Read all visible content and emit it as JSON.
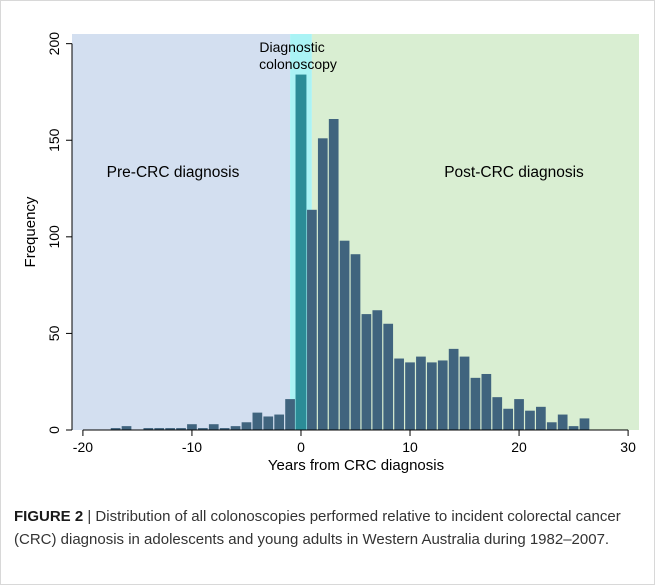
{
  "chart_data": {
    "type": "bar",
    "xlabel": "Years from CRC diagnosis",
    "ylabel": "Frequency",
    "xlim": [
      -21,
      31
    ],
    "ylim": [
      0,
      205
    ],
    "x_ticks": [
      -20,
      -10,
      0,
      10,
      20,
      30
    ],
    "x_tick_labels": [
      "-20",
      "-10",
      "0",
      "10",
      "20",
      "30"
    ],
    "y_ticks": [
      0,
      50,
      100,
      150,
      200
    ],
    "y_tick_labels": [
      "0",
      "50",
      "100",
      "150",
      "200"
    ],
    "bin_width": 1,
    "bins": [
      {
        "x": -17,
        "value": 1
      },
      {
        "x": -16,
        "value": 2
      },
      {
        "x": -15,
        "value": 0
      },
      {
        "x": -14,
        "value": 1
      },
      {
        "x": -13,
        "value": 1
      },
      {
        "x": -12,
        "value": 1
      },
      {
        "x": -11,
        "value": 1
      },
      {
        "x": -10,
        "value": 3
      },
      {
        "x": -9,
        "value": 1
      },
      {
        "x": -8,
        "value": 3
      },
      {
        "x": -7,
        "value": 1
      },
      {
        "x": -6,
        "value": 2
      },
      {
        "x": -5,
        "value": 4
      },
      {
        "x": -4,
        "value": 9
      },
      {
        "x": -3,
        "value": 7
      },
      {
        "x": -2,
        "value": 8
      },
      {
        "x": -1,
        "value": 16
      },
      {
        "x": 0,
        "value": 184
      },
      {
        "x": 1,
        "value": 114
      },
      {
        "x": 2,
        "value": 151
      },
      {
        "x": 3,
        "value": 161
      },
      {
        "x": 4,
        "value": 98
      },
      {
        "x": 5,
        "value": 91
      },
      {
        "x": 6,
        "value": 60
      },
      {
        "x": 7,
        "value": 62
      },
      {
        "x": 8,
        "value": 55
      },
      {
        "x": 9,
        "value": 37
      },
      {
        "x": 10,
        "value": 35
      },
      {
        "x": 11,
        "value": 38
      },
      {
        "x": 12,
        "value": 35
      },
      {
        "x": 13,
        "value": 36
      },
      {
        "x": 14,
        "value": 42
      },
      {
        "x": 15,
        "value": 38
      },
      {
        "x": 16,
        "value": 27
      },
      {
        "x": 17,
        "value": 29
      },
      {
        "x": 18,
        "value": 17
      },
      {
        "x": 19,
        "value": 11
      },
      {
        "x": 20,
        "value": 16
      },
      {
        "x": 21,
        "value": 10
      },
      {
        "x": 22,
        "value": 12
      },
      {
        "x": 23,
        "value": 4
      },
      {
        "x": 24,
        "value": 8
      },
      {
        "x": 25,
        "value": 2
      },
      {
        "x": 26,
        "value": 6
      }
    ],
    "regions": [
      {
        "label": "Pre-CRC diagnosis",
        "from": -21,
        "to": -1,
        "color": "#d3dff0"
      },
      {
        "label": "Diagnostic colonoscopy",
        "from": -1,
        "to": 1,
        "color": "#aaf3f5"
      },
      {
        "label": "Post-CRC diagnosis",
        "from": 1,
        "to": 31,
        "color": "#d9eed2"
      }
    ],
    "annotations": [
      {
        "lines": [
          "Diagnostic",
          "colonoscopy"
        ]
      },
      {
        "lines": [
          "Pre-CRC diagnosis"
        ]
      },
      {
        "lines": [
          "Post-CRC diagnosis"
        ]
      }
    ],
    "colors": {
      "bar_fill": "#40647e",
      "bar_fill_highlight": "#2b8c97",
      "bar_stroke": "#ffffff",
      "axis": "#000000"
    },
    "grid": false
  },
  "caption": {
    "label": "FIGURE 2",
    "separator": " | ",
    "text": "Distribution of all colonoscopies performed relative to incident colorectal cancer (CRC) diagnosis in adolescents and young adults in Western Australia during 1982–2007."
  }
}
